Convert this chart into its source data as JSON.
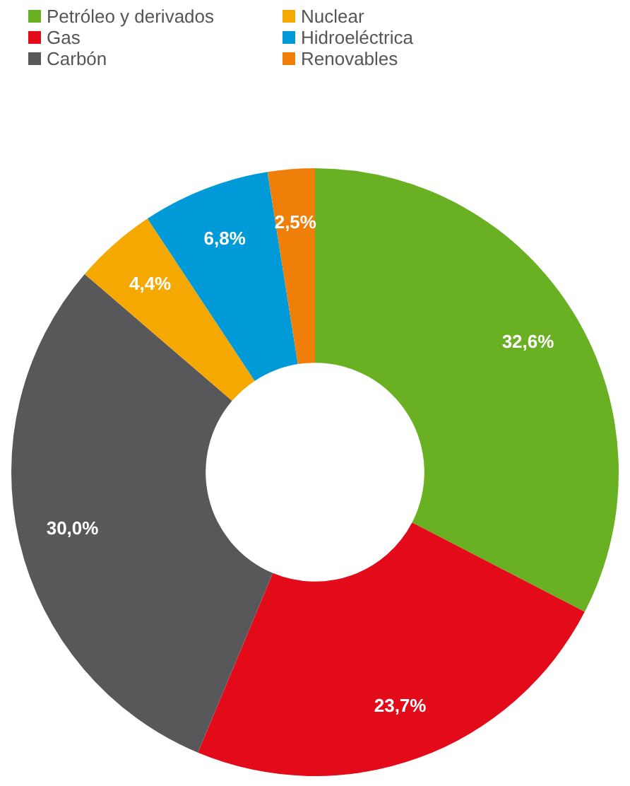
{
  "chart_data": {
    "type": "donut",
    "categories": [
      "Petróleo y derivados",
      "Gas",
      "Carbón",
      "Nuclear",
      "Hidroeléctrica",
      "Renovables"
    ],
    "values": [
      32.6,
      23.7,
      30.0,
      4.4,
      6.8,
      2.5
    ],
    "colors": [
      "#6ab023",
      "#e30a1a",
      "#58585a",
      "#f5a800",
      "#009ad8",
      "#f07f09"
    ],
    "value_labels": [
      "32,6%",
      "23,7%",
      "30,0%",
      "4,4%",
      "6,8%",
      "2,5%"
    ],
    "legend": "top"
  }
}
